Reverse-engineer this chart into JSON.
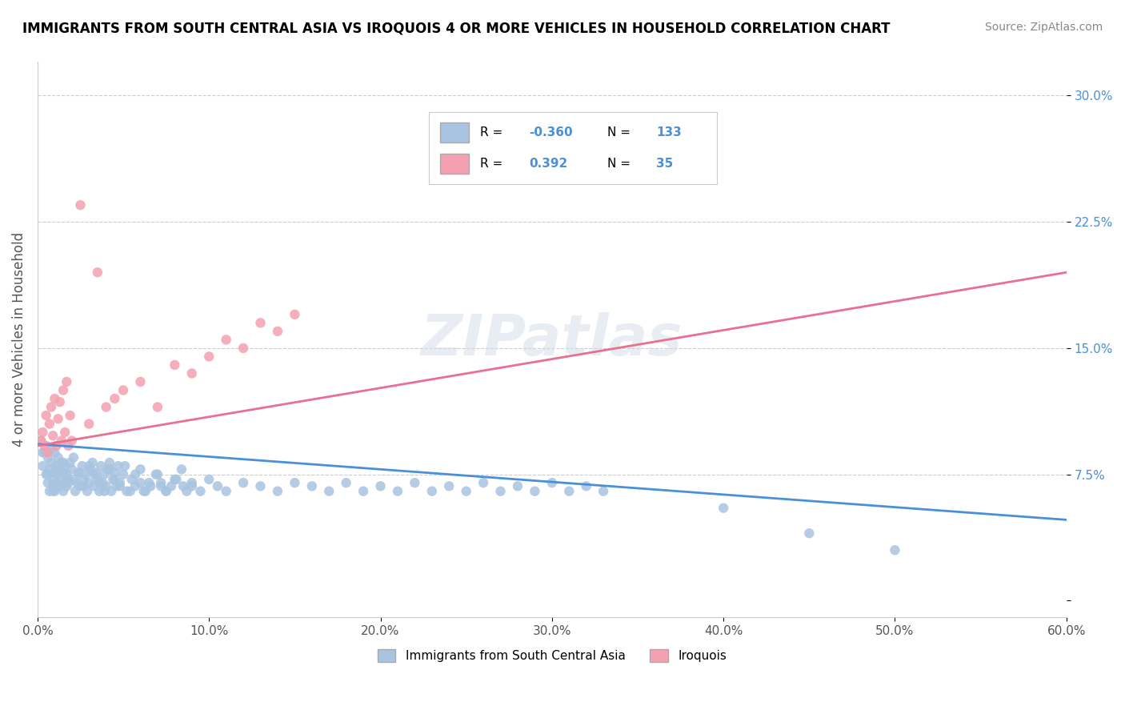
{
  "title": "IMMIGRANTS FROM SOUTH CENTRAL ASIA VS IROQUOIS 4 OR MORE VEHICLES IN HOUSEHOLD CORRELATION CHART",
  "source": "Source: ZipAtlas.com",
  "xlabel": "",
  "ylabel": "4 or more Vehicles in Household",
  "xlim": [
    0.0,
    0.6
  ],
  "ylim": [
    -0.01,
    0.32
  ],
  "xticks": [
    0.0,
    0.1,
    0.2,
    0.3,
    0.4,
    0.5,
    0.6
  ],
  "xticklabels": [
    "0.0%",
    "10.0%",
    "20.0%",
    "30.0%",
    "40.0%",
    "50.0%",
    "60.0%"
  ],
  "yticks": [
    0.0,
    0.075,
    0.15,
    0.225,
    0.3
  ],
  "yticklabels": [
    "",
    "7.5%",
    "15.0%",
    "22.5%",
    "30.0%"
  ],
  "blue_R": -0.36,
  "blue_N": 133,
  "pink_R": 0.392,
  "pink_N": 35,
  "blue_color": "#a8c4e0",
  "pink_color": "#f4a0b0",
  "blue_line_color": "#4a90d9",
  "pink_line_color": "#e87090",
  "watermark": "ZIPatlas",
  "legend_label_blue": "Immigrants from South Central Asia",
  "legend_label_pink": "Iroquois",
  "blue_scatter_x": [
    0.002,
    0.003,
    0.004,
    0.005,
    0.005,
    0.006,
    0.006,
    0.007,
    0.007,
    0.008,
    0.008,
    0.009,
    0.009,
    0.01,
    0.01,
    0.01,
    0.011,
    0.011,
    0.012,
    0.012,
    0.013,
    0.013,
    0.014,
    0.014,
    0.015,
    0.015,
    0.016,
    0.016,
    0.017,
    0.017,
    0.018,
    0.019,
    0.02,
    0.021,
    0.022,
    0.023,
    0.024,
    0.025,
    0.026,
    0.027,
    0.028,
    0.029,
    0.03,
    0.031,
    0.032,
    0.033,
    0.034,
    0.035,
    0.036,
    0.037,
    0.038,
    0.039,
    0.04,
    0.041,
    0.042,
    0.043,
    0.044,
    0.045,
    0.046,
    0.047,
    0.048,
    0.05,
    0.052,
    0.055,
    0.057,
    0.06,
    0.062,
    0.065,
    0.07,
    0.072,
    0.075,
    0.08,
    0.085,
    0.09,
    0.095,
    0.1,
    0.105,
    0.11,
    0.12,
    0.13,
    0.14,
    0.15,
    0.16,
    0.17,
    0.18,
    0.19,
    0.2,
    0.21,
    0.22,
    0.23,
    0.24,
    0.25,
    0.26,
    0.27,
    0.28,
    0.29,
    0.3,
    0.31,
    0.32,
    0.33,
    0.003,
    0.006,
    0.009,
    0.012,
    0.015,
    0.018,
    0.021,
    0.024,
    0.027,
    0.03,
    0.033,
    0.036,
    0.039,
    0.042,
    0.045,
    0.048,
    0.051,
    0.054,
    0.057,
    0.06,
    0.063,
    0.066,
    0.069,
    0.072,
    0.075,
    0.078,
    0.081,
    0.084,
    0.087,
    0.09,
    0.4,
    0.45,
    0.5
  ],
  "blue_scatter_y": [
    0.095,
    0.08,
    0.088,
    0.092,
    0.075,
    0.07,
    0.085,
    0.078,
    0.065,
    0.09,
    0.082,
    0.072,
    0.068,
    0.088,
    0.076,
    0.065,
    0.08,
    0.07,
    0.085,
    0.075,
    0.078,
    0.068,
    0.082,
    0.072,
    0.076,
    0.065,
    0.08,
    0.07,
    0.075,
    0.068,
    0.072,
    0.082,
    0.078,
    0.085,
    0.065,
    0.07,
    0.076,
    0.068,
    0.08,
    0.072,
    0.075,
    0.065,
    0.07,
    0.078,
    0.082,
    0.068,
    0.076,
    0.072,
    0.065,
    0.08,
    0.07,
    0.075,
    0.068,
    0.078,
    0.082,
    0.065,
    0.072,
    0.076,
    0.068,
    0.08,
    0.07,
    0.075,
    0.065,
    0.072,
    0.068,
    0.078,
    0.065,
    0.07,
    0.075,
    0.068,
    0.065,
    0.072,
    0.068,
    0.07,
    0.065,
    0.072,
    0.068,
    0.065,
    0.07,
    0.068,
    0.065,
    0.07,
    0.068,
    0.065,
    0.07,
    0.065,
    0.068,
    0.065,
    0.07,
    0.065,
    0.068,
    0.065,
    0.07,
    0.065,
    0.068,
    0.065,
    0.07,
    0.065,
    0.068,
    0.065,
    0.088,
    0.075,
    0.065,
    0.078,
    0.082,
    0.07,
    0.072,
    0.076,
    0.068,
    0.08,
    0.075,
    0.07,
    0.065,
    0.078,
    0.072,
    0.068,
    0.08,
    0.065,
    0.075,
    0.07,
    0.065,
    0.068,
    0.075,
    0.07,
    0.065,
    0.068,
    0.072,
    0.078,
    0.065,
    0.068,
    0.055,
    0.04,
    0.03
  ],
  "pink_scatter_x": [
    0.002,
    0.003,
    0.004,
    0.005,
    0.006,
    0.007,
    0.008,
    0.009,
    0.01,
    0.011,
    0.012,
    0.013,
    0.014,
    0.015,
    0.016,
    0.017,
    0.018,
    0.019,
    0.02,
    0.025,
    0.03,
    0.035,
    0.04,
    0.045,
    0.05,
    0.06,
    0.07,
    0.08,
    0.09,
    0.1,
    0.11,
    0.12,
    0.13,
    0.14,
    0.15
  ],
  "pink_scatter_y": [
    0.095,
    0.1,
    0.092,
    0.11,
    0.088,
    0.105,
    0.115,
    0.098,
    0.12,
    0.092,
    0.108,
    0.118,
    0.095,
    0.125,
    0.1,
    0.13,
    0.092,
    0.11,
    0.095,
    0.235,
    0.105,
    0.195,
    0.115,
    0.12,
    0.125,
    0.13,
    0.115,
    0.14,
    0.135,
    0.145,
    0.155,
    0.15,
    0.165,
    0.16,
    0.17
  ],
  "blue_trend_x": [
    0.0,
    0.6
  ],
  "blue_trend_y_start": 0.093,
  "blue_trend_y_end": 0.048,
  "pink_trend_x": [
    0.0,
    0.6
  ],
  "pink_trend_y_start": 0.092,
  "pink_trend_y_end": 0.195
}
